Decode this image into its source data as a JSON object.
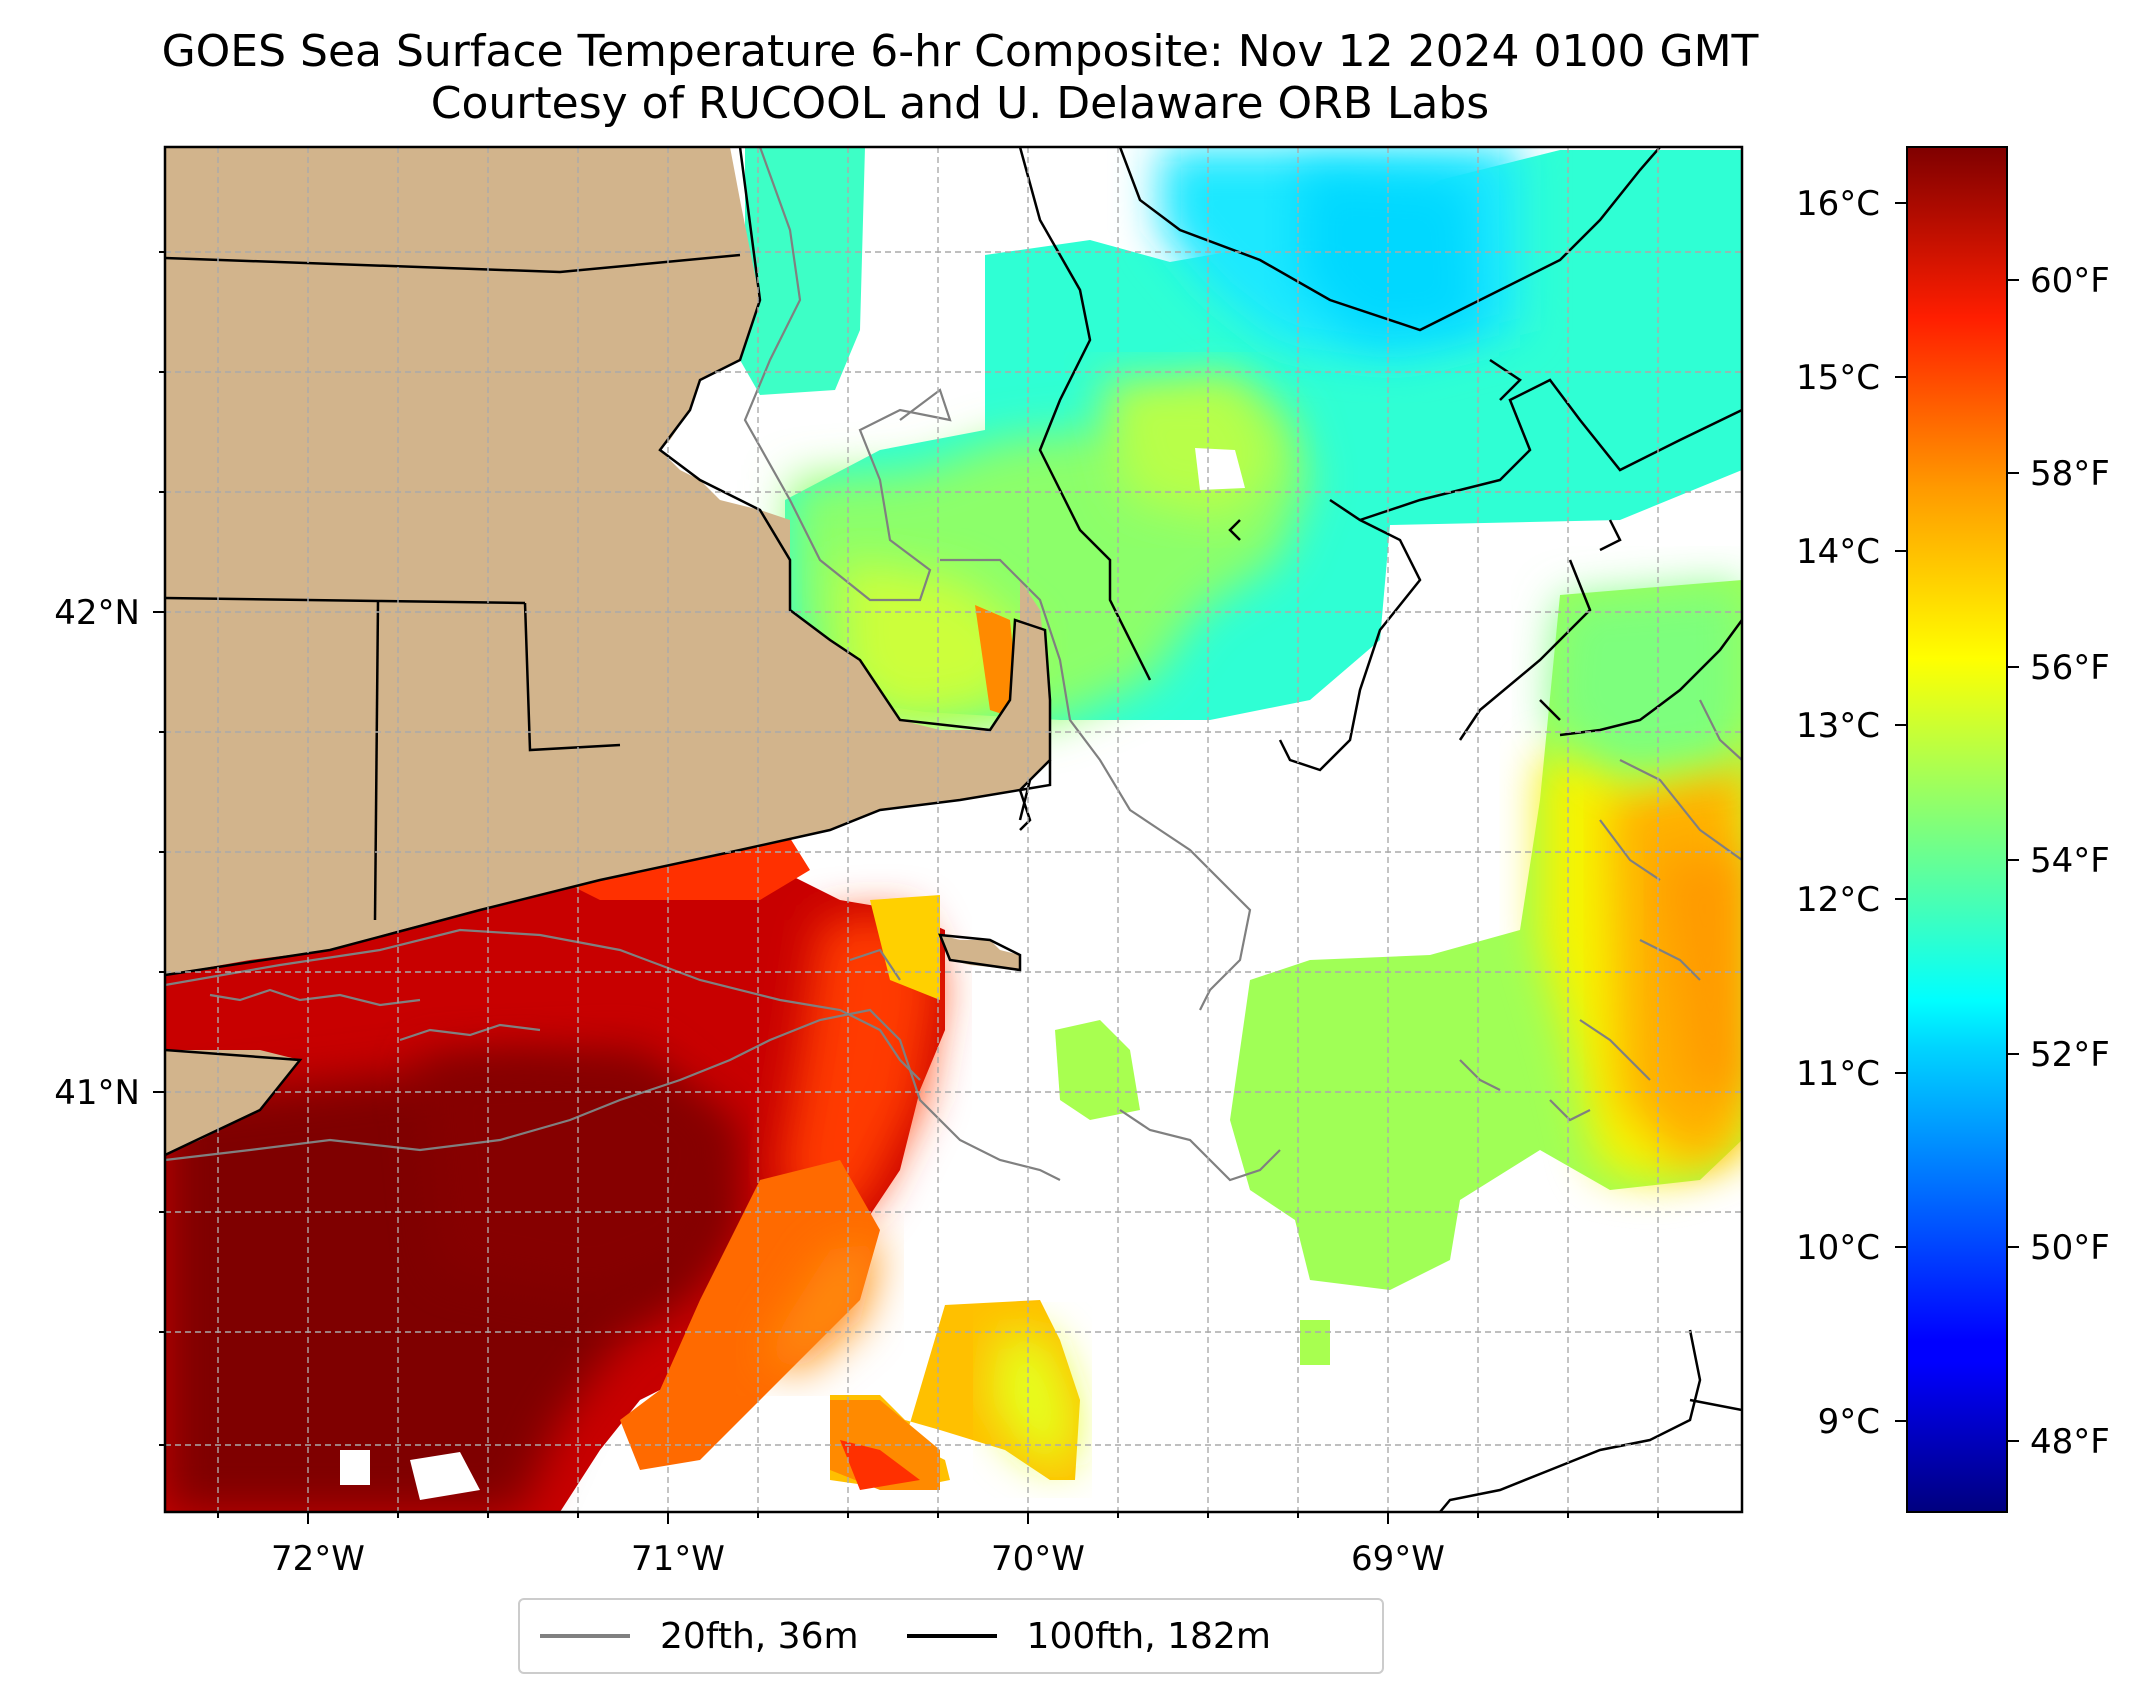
{
  "title": "GOES Sea Surface Temperature 6-hr Composite: Nov 12 2024 0100 GMT",
  "subtitle": "Courtesy of RUCOOL and U. Delaware ORB Labs",
  "map": {
    "lon_ticks": [
      "72°W",
      "71°W",
      "70°W",
      "69°W"
    ],
    "lat_ticks": [
      "42°N",
      "41°N"
    ],
    "land_color": "#d2b48c",
    "grid": "dashed"
  },
  "colorbar": {
    "colormap": "jet",
    "celsius_ticks": [
      "16°C",
      "15°C",
      "14°C",
      "13°C",
      "12°C",
      "11°C",
      "10°C",
      "9°C"
    ],
    "fahrenheit_ticks": [
      "60°F",
      "58°F",
      "56°F",
      "54°F",
      "52°F",
      "50°F",
      "48°F"
    ],
    "range_celsius": [
      8.5,
      16.3
    ]
  },
  "legend": {
    "items": [
      {
        "label": "20fth, 36m",
        "color": "#808080"
      },
      {
        "label": "100fth, 182m",
        "color": "#000000"
      }
    ]
  }
}
